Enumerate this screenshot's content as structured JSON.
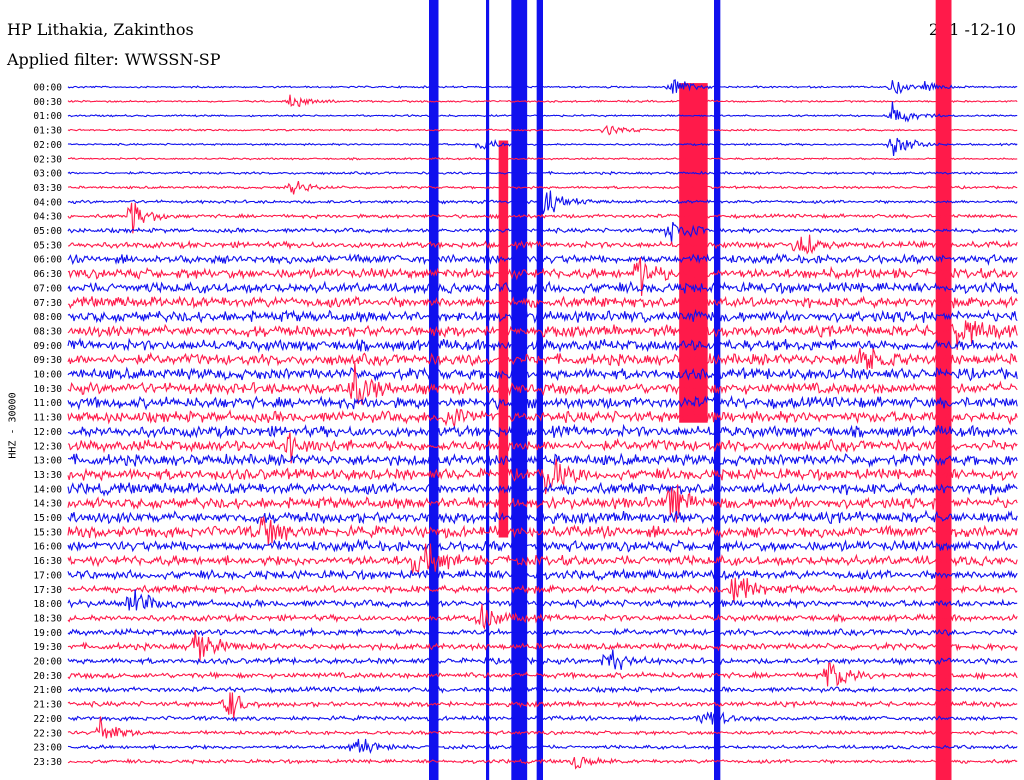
{
  "header": {
    "station": "HP Lithakia, Zakinthos",
    "filter_prefix": "Applied filter:",
    "filter_name": "WWSSN-SP",
    "date": "201 -12-10"
  },
  "axis": {
    "vertical_label": "HHZ - 30000"
  },
  "colors": {
    "trace_a": "#1010ee",
    "trace_b": "#ff1a4a",
    "background": "#ffffff",
    "text": "#000000"
  },
  "chart_data": {
    "type": "line",
    "title": "HP Lithakia, Zakinthos",
    "subtitle": "Applied filter: WWSSN-SP",
    "ylabel": "HHZ - 30000",
    "xlabel": "",
    "grid": false,
    "legend": "none",
    "row_interval_minutes": 30,
    "row_labels": [
      "00:00",
      "00:30",
      "01:00",
      "01:30",
      "02:00",
      "02:30",
      "03:00",
      "03:30",
      "04:00",
      "04:30",
      "05:00",
      "05:30",
      "06:00",
      "06:30",
      "07:00",
      "07:30",
      "08:00",
      "08:30",
      "09:00",
      "09:30",
      "10:00",
      "10:30",
      "11:00",
      "11:30",
      "12:00",
      "12:30",
      "13:00",
      "13:30",
      "14:00",
      "14:30",
      "15:00",
      "15:30",
      "16:00",
      "16:30",
      "17:00",
      "17:30",
      "18:00",
      "18:30",
      "19:00",
      "19:30",
      "20:00",
      "20:30",
      "21:00",
      "21:30",
      "22:00",
      "22:30",
      "23:00",
      "23:30"
    ],
    "row_colors_cycle": [
      "blue",
      "red"
    ],
    "baseline_amplitude": [
      0.15,
      0.15,
      0.15,
      0.15,
      0.15,
      0.15,
      0.2,
      0.2,
      0.25,
      0.3,
      0.35,
      0.5,
      0.7,
      0.8,
      0.85,
      0.85,
      0.9,
      0.9,
      0.9,
      0.9,
      0.9,
      0.9,
      0.9,
      0.9,
      0.9,
      0.9,
      0.9,
      0.9,
      0.9,
      0.9,
      0.9,
      0.9,
      0.85,
      0.8,
      0.7,
      0.6,
      0.55,
      0.5,
      0.5,
      0.5,
      0.45,
      0.45,
      0.4,
      0.4,
      0.35,
      0.3,
      0.3,
      0.3
    ],
    "events": [
      {
        "row": 0,
        "minute": 19,
        "amp": 2.5
      },
      {
        "row": 0,
        "minute": 27,
        "amp": 1.2
      },
      {
        "row": 0,
        "minute": 26,
        "amp": 2
      },
      {
        "row": 1,
        "minute": 7,
        "amp": 1.5
      },
      {
        "row": 2,
        "minute": 26,
        "amp": 3
      },
      {
        "row": 3,
        "minute": 17,
        "amp": 1.3
      },
      {
        "row": 4,
        "minute": 26,
        "amp": 4
      },
      {
        "row": 4,
        "minute": 13,
        "amp": 1.5
      },
      {
        "row": 7,
        "minute": 7,
        "amp": 2
      },
      {
        "row": 8,
        "minute": 15,
        "amp": 3
      },
      {
        "row": 9,
        "minute": 2,
        "amp": 3.5
      },
      {
        "row": 10,
        "minute": 19,
        "amp": 4
      },
      {
        "row": 11,
        "minute": 23,
        "amp": 3
      },
      {
        "row": 13,
        "minute": 18,
        "amp": 4
      },
      {
        "row": 17,
        "minute": 28,
        "amp": 4
      },
      {
        "row": 19,
        "minute": 25,
        "amp": 3
      },
      {
        "row": 21,
        "minute": 9,
        "amp": 5
      },
      {
        "row": 23,
        "minute": 12,
        "amp": 3
      },
      {
        "row": 25,
        "minute": 7,
        "amp": 3
      },
      {
        "row": 27,
        "minute": 15,
        "amp": 5
      },
      {
        "row": 29,
        "minute": 19,
        "amp": 4
      },
      {
        "row": 31,
        "minute": 6,
        "amp": 4
      },
      {
        "row": 33,
        "minute": 11,
        "amp": 5
      },
      {
        "row": 35,
        "minute": 21,
        "amp": 4
      },
      {
        "row": 36,
        "minute": 2,
        "amp": 3
      },
      {
        "row": 37,
        "minute": 13,
        "amp": 4
      },
      {
        "row": 39,
        "minute": 4,
        "amp": 4
      },
      {
        "row": 40,
        "minute": 17,
        "amp": 3
      },
      {
        "row": 41,
        "minute": 24,
        "amp": 4
      },
      {
        "row": 43,
        "minute": 5,
        "amp": 3
      },
      {
        "row": 44,
        "minute": 20,
        "amp": 3
      },
      {
        "row": 45,
        "minute": 1,
        "amp": 3
      },
      {
        "row": 46,
        "minute": 9,
        "amp": 2.5
      },
      {
        "row": 47,
        "minute": 16,
        "amp": 2
      }
    ],
    "saturated_bands": [
      {
        "minute_from": 14.0,
        "minute_to": 14.5,
        "row_from": 0,
        "row_to": 47,
        "color": "blue"
      },
      {
        "minute_from": 11.4,
        "minute_to": 11.7,
        "row_from": 0,
        "row_to": 47,
        "color": "blue"
      },
      {
        "minute_from": 13.2,
        "minute_to": 13.3,
        "row_from": 0,
        "row_to": 47,
        "color": "blue"
      },
      {
        "minute_from": 14.8,
        "minute_to": 15.0,
        "row_from": 0,
        "row_to": 47,
        "color": "blue"
      },
      {
        "minute_from": 20.4,
        "minute_to": 20.6,
        "row_from": 0,
        "row_to": 47,
        "color": "blue"
      },
      {
        "minute_from": 27.4,
        "minute_to": 27.9,
        "row_from": 0,
        "row_to": 47,
        "color": "red"
      },
      {
        "minute_from": 13.6,
        "minute_to": 13.9,
        "row_from": 10,
        "row_to": 30,
        "color": "red"
      },
      {
        "minute_from": 19.3,
        "minute_to": 20.2,
        "row_from": 6,
        "row_to": 22,
        "color": "red"
      }
    ]
  }
}
